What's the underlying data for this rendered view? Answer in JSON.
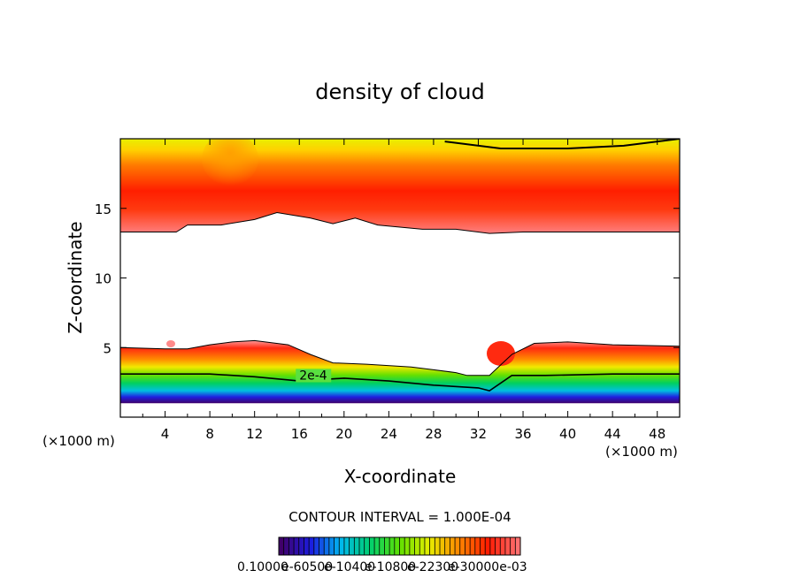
{
  "chart_data": {
    "type": "heatmap",
    "title": "density of cloud",
    "xlabel": "X-coordinate",
    "ylabel": "Z-coordinate",
    "x_unit_left": "(×1000 m)",
    "x_unit_right": "(×1000 m)",
    "xlim": [
      0,
      50
    ],
    "ylim": [
      0,
      20
    ],
    "x_ticks": [
      4,
      8,
      12,
      16,
      20,
      24,
      28,
      32,
      36,
      40,
      44,
      48
    ],
    "y_ticks": [
      5,
      10,
      15
    ],
    "contour_interval_label": "CONTOUR INTERVAL = 1.000E-04",
    "contour_labels": [
      {
        "text": "2e-4",
        "x": 16,
        "z": 2.7
      }
    ],
    "colorbar_labels": [
      "0.10000",
      "e-60500",
      "e-10400",
      "e-10800",
      "e-22300",
      "e-30000e-03"
    ],
    "colormap": [
      "#40006a",
      "#1c1ce0",
      "#00b8f0",
      "#00d070",
      "#5ee000",
      "#e6ee00",
      "#ff8800",
      "#ff1a00",
      "#ff7070"
    ],
    "upper_layer": {
      "description_z": [
        13.3,
        20
      ],
      "base_profile": [
        [
          0,
          13.3
        ],
        [
          5,
          13.3
        ],
        [
          6,
          13.8
        ],
        [
          9,
          13.8
        ],
        [
          12,
          14.2
        ],
        [
          14,
          14.7
        ],
        [
          17,
          14.3
        ],
        [
          19,
          13.9
        ],
        [
          21,
          14.3
        ],
        [
          23,
          13.8
        ],
        [
          27,
          13.5
        ],
        [
          30,
          13.5
        ],
        [
          33,
          13.2
        ],
        [
          36,
          13.3
        ],
        [
          50,
          13.3
        ]
      ],
      "peak_z": 15.5,
      "max_value_contour_top": [
        [
          29,
          19.8
        ],
        [
          34,
          19.3
        ],
        [
          40,
          19.3
        ],
        [
          45,
          19.5
        ],
        [
          50,
          20
        ]
      ]
    },
    "lower_layer": {
      "top_profile": [
        [
          0,
          5.0
        ],
        [
          4,
          4.9
        ],
        [
          6,
          4.9
        ],
        [
          8,
          5.2
        ],
        [
          10,
          5.4
        ],
        [
          12,
          5.5
        ],
        [
          15,
          5.2
        ],
        [
          17,
          4.5
        ],
        [
          19,
          3.9
        ],
        [
          22,
          3.8
        ],
        [
          26,
          3.6
        ],
        [
          28,
          3.4
        ],
        [
          30,
          3.2
        ],
        [
          31,
          3.0
        ],
        [
          33,
          3.0
        ],
        [
          35,
          4.5
        ],
        [
          37,
          5.3
        ],
        [
          40,
          5.4
        ],
        [
          44,
          5.2
        ],
        [
          50,
          5.1
        ]
      ],
      "contour_2e-4": [
        [
          0,
          3.1
        ],
        [
          8,
          3.1
        ],
        [
          12,
          2.9
        ],
        [
          16,
          2.6
        ],
        [
          20,
          2.8
        ],
        [
          24,
          2.6
        ],
        [
          28,
          2.3
        ],
        [
          32,
          2.1
        ],
        [
          33,
          1.9
        ],
        [
          35,
          3.0
        ],
        [
          38,
          3.0
        ],
        [
          44,
          3.1
        ],
        [
          50,
          3.1
        ]
      ],
      "base_z": 1.0
    }
  }
}
